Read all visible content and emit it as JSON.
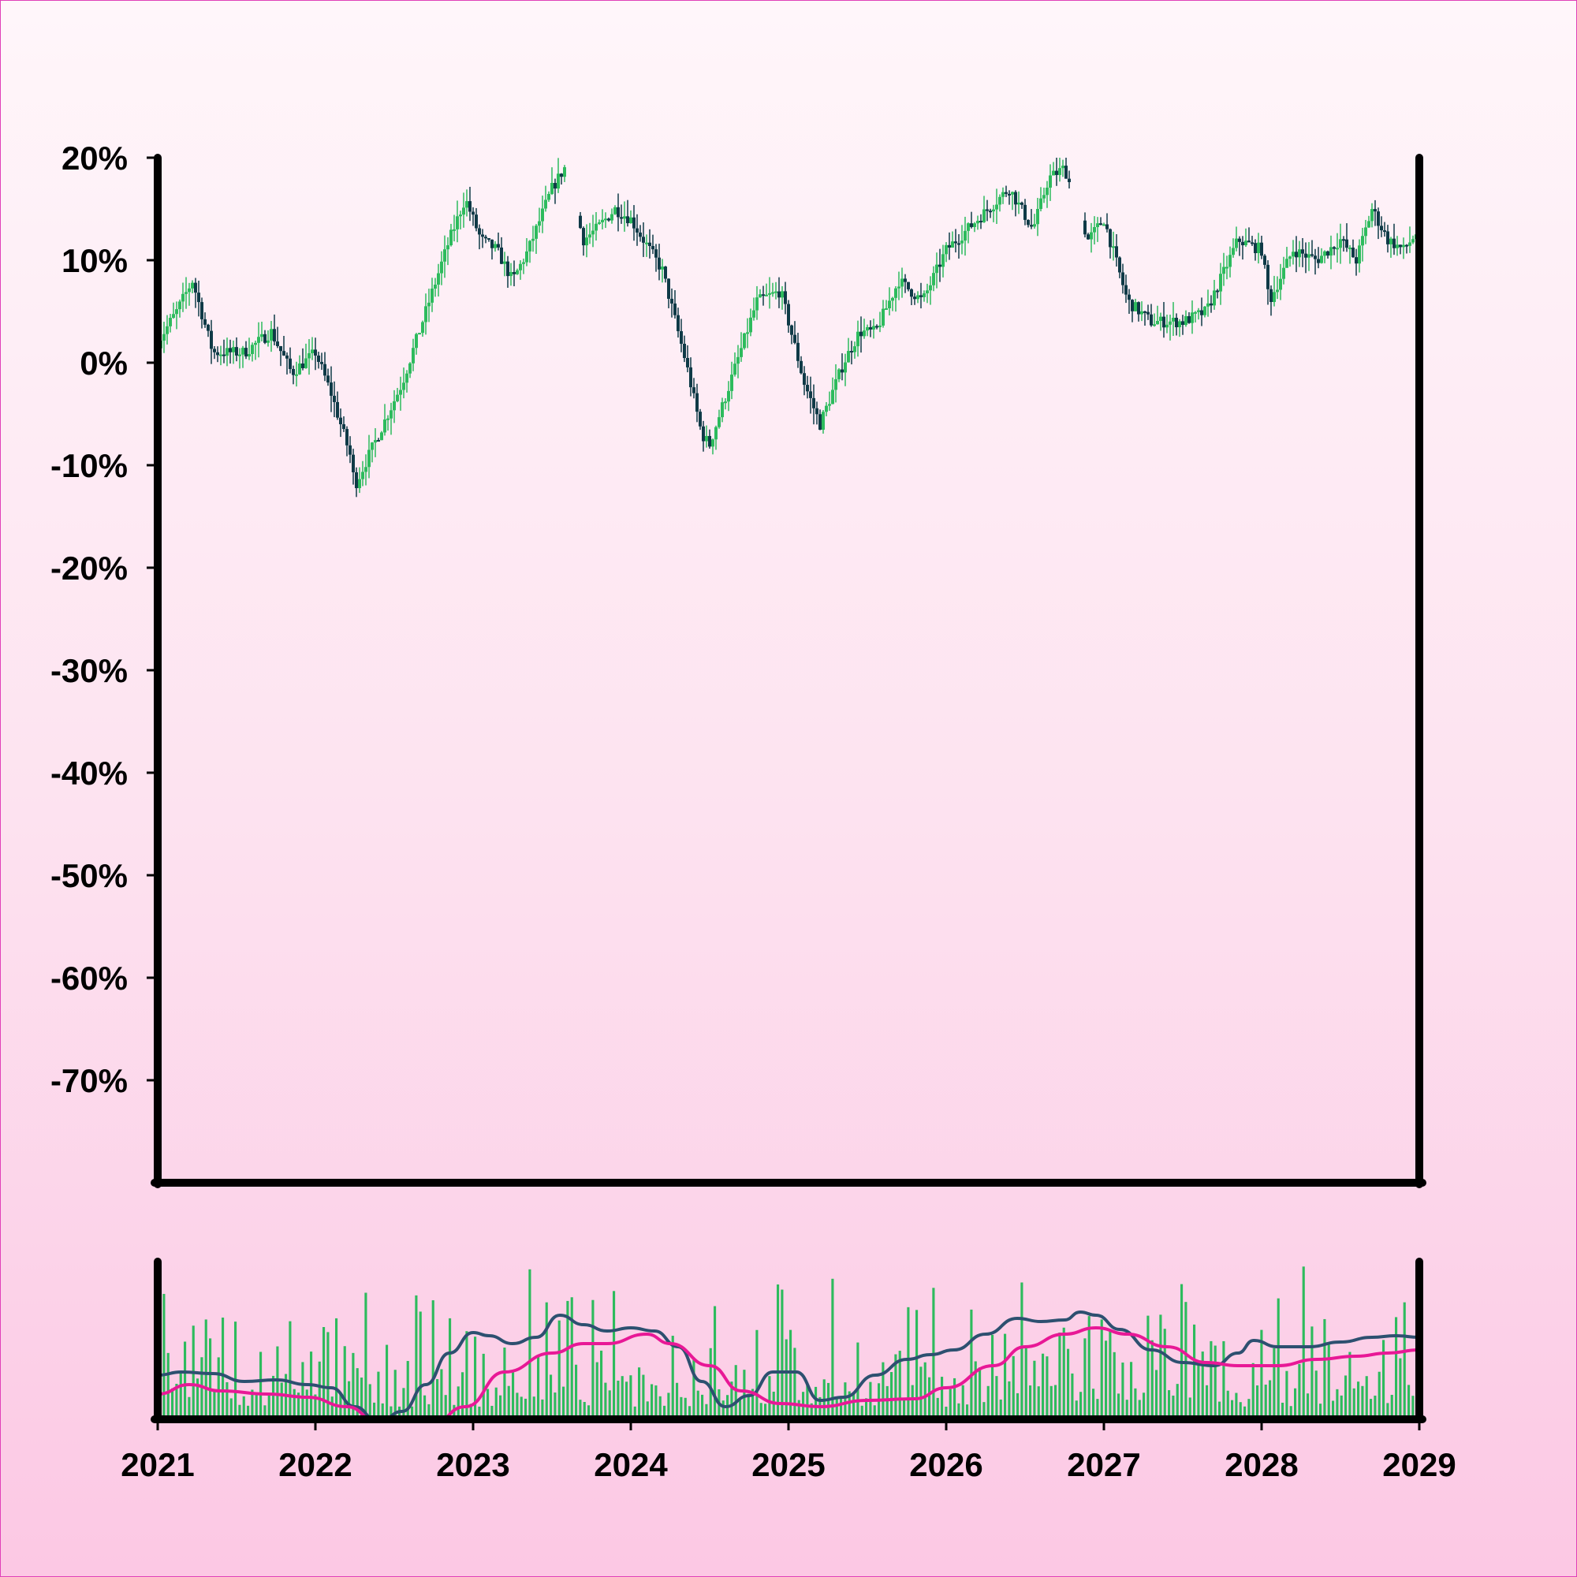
{
  "chart_data": [
    {
      "type": "candlestick",
      "title": "",
      "xlabel": "",
      "ylabel": "",
      "y_format": "percent",
      "y_ticks": [
        20,
        10,
        0,
        -10,
        -20,
        -30,
        -40,
        -50,
        -60,
        -70
      ],
      "y_tick_labels": [
        "20%",
        "10%",
        "0%",
        "-10%",
        "-20%",
        "-30%",
        "-40%",
        "-50%",
        "-60%",
        "-70%"
      ],
      "ylim": [
        -80,
        20
      ],
      "xlim": [
        2021,
        2029
      ],
      "x_ticks": [
        2021,
        2022,
        2023,
        2024,
        2025,
        2026,
        2027,
        2028,
        2029
      ],
      "x_tick_labels": [
        "2021",
        "2022",
        "2023",
        "2024",
        "2025",
        "2026",
        "2027",
        "2028",
        "2029"
      ],
      "colors": {
        "up": "#2dbb5d",
        "down": "#0f3a47"
      },
      "close_path": [
        [
          2021.0,
          2
        ],
        [
          2021.12,
          5
        ],
        [
          2021.22,
          8
        ],
        [
          2021.35,
          1
        ],
        [
          2021.55,
          1
        ],
        [
          2021.72,
          3
        ],
        [
          2021.85,
          -1
        ],
        [
          2022.0,
          1
        ],
        [
          2022.1,
          -3
        ],
        [
          2022.22,
          -9
        ],
        [
          2022.25,
          -12
        ],
        [
          2022.4,
          -7
        ],
        [
          2022.55,
          -2
        ],
        [
          2022.7,
          5
        ],
        [
          2022.85,
          12
        ],
        [
          2022.95,
          16
        ],
        [
          2023.05,
          12
        ],
        [
          2023.15,
          11
        ],
        [
          2023.25,
          8
        ],
        [
          2023.35,
          11
        ],
        [
          2023.5,
          17
        ],
        [
          2023.58,
          19
        ],
        [
          2023.7,
          12
        ],
        [
          2023.78,
          13
        ],
        [
          2023.9,
          15
        ],
        [
          2024.0,
          14
        ],
        [
          2024.08,
          12
        ],
        [
          2024.2,
          9
        ],
        [
          2024.35,
          0
        ],
        [
          2024.45,
          -7
        ],
        [
          2024.5,
          -8
        ],
        [
          2024.65,
          -1
        ],
        [
          2024.8,
          6
        ],
        [
          2024.95,
          7
        ],
        [
          2025.1,
          -2
        ],
        [
          2025.2,
          -6
        ],
        [
          2025.35,
          0
        ],
        [
          2025.45,
          3
        ],
        [
          2025.55,
          3
        ],
        [
          2025.7,
          8
        ],
        [
          2025.85,
          6
        ],
        [
          2026.0,
          11
        ],
        [
          2026.2,
          14
        ],
        [
          2026.4,
          17
        ],
        [
          2026.55,
          13
        ],
        [
          2026.65,
          18
        ],
        [
          2026.75,
          19
        ],
        [
          2026.9,
          12
        ],
        [
          2027.0,
          14
        ],
        [
          2027.15,
          6
        ],
        [
          2027.3,
          4
        ],
        [
          2027.5,
          4
        ],
        [
          2027.65,
          5
        ],
        [
          2027.85,
          12
        ],
        [
          2028.0,
          11
        ],
        [
          2028.05,
          6
        ],
        [
          2028.2,
          11
        ],
        [
          2028.35,
          10
        ],
        [
          2028.5,
          12
        ],
        [
          2028.6,
          10
        ],
        [
          2028.7,
          15
        ],
        [
          2028.8,
          12
        ],
        [
          2028.9,
          11
        ],
        [
          2029.0,
          13
        ]
      ],
      "gaps": [
        [
          2023.6,
          2023.66
        ],
        [
          2026.8,
          2026.86
        ]
      ],
      "clip_at_top": true
    },
    {
      "type": "bar+line",
      "title": "",
      "xlabel": "",
      "ylabel": "",
      "description_values": "volume bars with two moving averages; no axis values printed",
      "ylim": [
        0,
        100
      ],
      "xlim": [
        2021,
        2029
      ],
      "bar_color": "#2dbb5d",
      "series": [
        {
          "color": "#2d5070",
          "points": [
            [
              2021.0,
              28
            ],
            [
              2021.15,
              30
            ],
            [
              2021.35,
              29
            ],
            [
              2021.55,
              24
            ],
            [
              2021.75,
              25
            ],
            [
              2021.95,
              22
            ],
            [
              2022.1,
              20
            ],
            [
              2022.25,
              8
            ],
            [
              2022.4,
              -2
            ],
            [
              2022.55,
              5
            ],
            [
              2022.7,
              22
            ],
            [
              2022.85,
              42
            ],
            [
              2023.0,
              55
            ],
            [
              2023.1,
              53
            ],
            [
              2023.25,
              48
            ],
            [
              2023.4,
              52
            ],
            [
              2023.55,
              66
            ],
            [
              2023.7,
              60
            ],
            [
              2023.85,
              56
            ],
            [
              2024.0,
              58
            ],
            [
              2024.15,
              56
            ],
            [
              2024.3,
              46
            ],
            [
              2024.45,
              24
            ],
            [
              2024.6,
              8
            ],
            [
              2024.75,
              15
            ],
            [
              2024.9,
              30
            ],
            [
              2025.05,
              30
            ],
            [
              2025.2,
              12
            ],
            [
              2025.35,
              14
            ],
            [
              2025.55,
              28
            ],
            [
              2025.75,
              38
            ],
            [
              2025.9,
              41
            ],
            [
              2026.05,
              44
            ],
            [
              2026.25,
              54
            ],
            [
              2026.45,
              64
            ],
            [
              2026.6,
              62
            ],
            [
              2026.75,
              63
            ],
            [
              2026.85,
              68
            ],
            [
              2026.95,
              66
            ],
            [
              2027.1,
              57
            ],
            [
              2027.3,
              44
            ],
            [
              2027.5,
              36
            ],
            [
              2027.7,
              34
            ],
            [
              2027.85,
              42
            ],
            [
              2027.95,
              50
            ],
            [
              2028.1,
              46
            ],
            [
              2028.3,
              46
            ],
            [
              2028.5,
              49
            ],
            [
              2028.7,
              52
            ],
            [
              2028.85,
              53
            ],
            [
              2029.0,
              52
            ]
          ]
        },
        {
          "color": "#e81896",
          "points": [
            [
              2021.0,
              16
            ],
            [
              2021.2,
              22
            ],
            [
              2021.4,
              18
            ],
            [
              2021.7,
              16
            ],
            [
              2021.95,
              14
            ],
            [
              2022.2,
              8
            ],
            [
              2022.4,
              -2
            ],
            [
              2022.7,
              -8
            ],
            [
              2022.95,
              8
            ],
            [
              2023.2,
              30
            ],
            [
              2023.5,
              42
            ],
            [
              2023.7,
              48
            ],
            [
              2023.85,
              48
            ],
            [
              2024.1,
              54
            ],
            [
              2024.25,
              48
            ],
            [
              2024.5,
              34
            ],
            [
              2024.7,
              18
            ],
            [
              2024.95,
              10
            ],
            [
              2025.2,
              8
            ],
            [
              2025.5,
              12
            ],
            [
              2025.8,
              13
            ],
            [
              2026.0,
              20
            ],
            [
              2026.3,
              34
            ],
            [
              2026.5,
              46
            ],
            [
              2026.75,
              54
            ],
            [
              2026.95,
              58
            ],
            [
              2027.15,
              54
            ],
            [
              2027.4,
              46
            ],
            [
              2027.65,
              36
            ],
            [
              2027.85,
              34
            ],
            [
              2028.1,
              34
            ],
            [
              2028.35,
              38
            ],
            [
              2028.6,
              40
            ],
            [
              2028.8,
              42
            ],
            [
              2029.0,
              44
            ]
          ]
        }
      ]
    }
  ]
}
